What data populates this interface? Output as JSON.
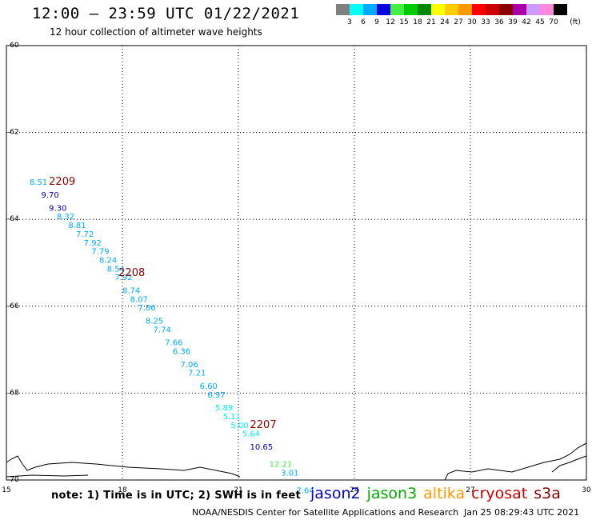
{
  "header": {
    "title": "12:00 – 23:59 UTC 01/22/2021",
    "subtitle": "12 hour collection of altimeter wave heights"
  },
  "legend": {
    "unit": "(ft)",
    "bins": [
      {
        "color": "#808080",
        "label": "3"
      },
      {
        "color": "#00ffff",
        "label": "6"
      },
      {
        "color": "#00aaff",
        "label": "9"
      },
      {
        "color": "#0000dd",
        "label": "12"
      },
      {
        "color": "#44ee44",
        "label": "15"
      },
      {
        "color": "#00cc00",
        "label": "18"
      },
      {
        "color": "#008800",
        "label": "21"
      },
      {
        "color": "#ffff00",
        "label": "24"
      },
      {
        "color": "#ffcc00",
        "label": "27"
      },
      {
        "color": "#ff9900",
        "label": "30"
      },
      {
        "color": "#ff0000",
        "label": "33"
      },
      {
        "color": "#cc0000",
        "label": "36"
      },
      {
        "color": "#880000",
        "label": "39"
      },
      {
        "color": "#aa00aa",
        "label": "42"
      },
      {
        "color": "#cc99ff",
        "label": "45"
      },
      {
        "color": "#ff88dd",
        "label": "70"
      },
      {
        "color": "#000000",
        "label": ""
      }
    ]
  },
  "map": {
    "lon_range": [
      15,
      30
    ],
    "lat_range": [
      -70,
      -60
    ],
    "lon_ticks": [
      "15",
      "18",
      "21",
      "24",
      "27",
      "30"
    ],
    "lat_ticks": [
      "-60",
      "-62",
      "-64",
      "-66",
      "-68",
      "-70"
    ],
    "grid": "dotted",
    "observations": [
      {
        "lon": 15.6,
        "lat": -63.2,
        "text": "8.51",
        "color": "#00aaff"
      },
      {
        "lon": 15.9,
        "lat": -63.5,
        "text": "9.70",
        "color": "#0000bb"
      },
      {
        "lon": 16.1,
        "lat": -63.8,
        "text": "9.30",
        "color": "#0000bb"
      },
      {
        "lon": 16.3,
        "lat": -64.0,
        "text": "8.32",
        "color": "#00aaff"
      },
      {
        "lon": 16.6,
        "lat": -64.2,
        "text": "8.81",
        "color": "#00aaff"
      },
      {
        "lon": 16.8,
        "lat": -64.4,
        "text": "7.72",
        "color": "#00aaff"
      },
      {
        "lon": 17.0,
        "lat": -64.6,
        "text": "7.92",
        "color": "#00aaff"
      },
      {
        "lon": 17.2,
        "lat": -64.8,
        "text": "7.79",
        "color": "#00aaff"
      },
      {
        "lon": 17.4,
        "lat": -65.0,
        "text": "8.24",
        "color": "#00aaff"
      },
      {
        "lon": 17.6,
        "lat": -65.2,
        "text": "8.54",
        "color": "#00aaff"
      },
      {
        "lon": 17.8,
        "lat": -65.4,
        "text": "7.92",
        "color": "#00aaff"
      },
      {
        "lon": 18.0,
        "lat": -65.7,
        "text": "8.74",
        "color": "#00aaff"
      },
      {
        "lon": 18.2,
        "lat": -65.9,
        "text": "8.07",
        "color": "#00aaff"
      },
      {
        "lon": 18.4,
        "lat": -66.1,
        "text": "7.86",
        "color": "#00aaff"
      },
      {
        "lon": 18.6,
        "lat": -66.4,
        "text": "8.25",
        "color": "#00aaff"
      },
      {
        "lon": 18.8,
        "lat": -66.6,
        "text": "7.74",
        "color": "#00aaff"
      },
      {
        "lon": 19.1,
        "lat": -66.9,
        "text": "7.66",
        "color": "#00aaff"
      },
      {
        "lon": 19.3,
        "lat": -67.1,
        "text": "6.36",
        "color": "#00aaff"
      },
      {
        "lon": 19.5,
        "lat": -67.4,
        "text": "7.06",
        "color": "#00aaff"
      },
      {
        "lon": 19.7,
        "lat": -67.6,
        "text": "7.21",
        "color": "#00aaff"
      },
      {
        "lon": 20.0,
        "lat": -67.9,
        "text": "6.60",
        "color": "#00aaff"
      },
      {
        "lon": 20.2,
        "lat": -68.1,
        "text": "6.97",
        "color": "#00aaff"
      },
      {
        "lon": 20.4,
        "lat": -68.4,
        "text": "5.89",
        "color": "#00eeff"
      },
      {
        "lon": 20.6,
        "lat": -68.6,
        "text": "5.11",
        "color": "#00eeff"
      },
      {
        "lon": 20.8,
        "lat": -68.8,
        "text": "5.00",
        "color": "#00eeff"
      },
      {
        "lon": 21.1,
        "lat": -69.0,
        "text": "5.64",
        "color": "#00eeff"
      },
      {
        "lon": 21.3,
        "lat": -69.3,
        "text": "10.65",
        "color": "#0000bb"
      },
      {
        "lon": 21.8,
        "lat": -69.7,
        "text": "12.21",
        "color": "#44ee44"
      },
      {
        "lon": 22.1,
        "lat": -69.9,
        "text": "3.01",
        "color": "#00aaff"
      },
      {
        "lon": 22.5,
        "lat": -70.3,
        "text": "7.64",
        "color": "#00aaff"
      }
    ],
    "pass_labels": [
      {
        "lon": 16.1,
        "lat": -63.2,
        "text": "2209",
        "color": "#880000"
      },
      {
        "lon": 17.9,
        "lat": -65.3,
        "text": "2208",
        "color": "#880000"
      },
      {
        "lon": 21.3,
        "lat": -68.8,
        "text": "2207",
        "color": "#880000"
      }
    ]
  },
  "footer": {
    "note": "note: 1) Time is in UTC; 2) SWH is in feet",
    "satellites": [
      {
        "name": "jason2",
        "color": "#0000cc"
      },
      {
        "name": "jason3",
        "color": "#00aa00"
      },
      {
        "name": "altika",
        "color": "#ff9900"
      },
      {
        "name": "cryosat",
        "color": "#cc0000"
      },
      {
        "name": "s3a",
        "color": "#880000"
      }
    ],
    "credit": "NOAA/NESDIS Center for Satellite Applications and Research",
    "timestamp": "Jan 25 08:29:43 UTC 2021"
  }
}
